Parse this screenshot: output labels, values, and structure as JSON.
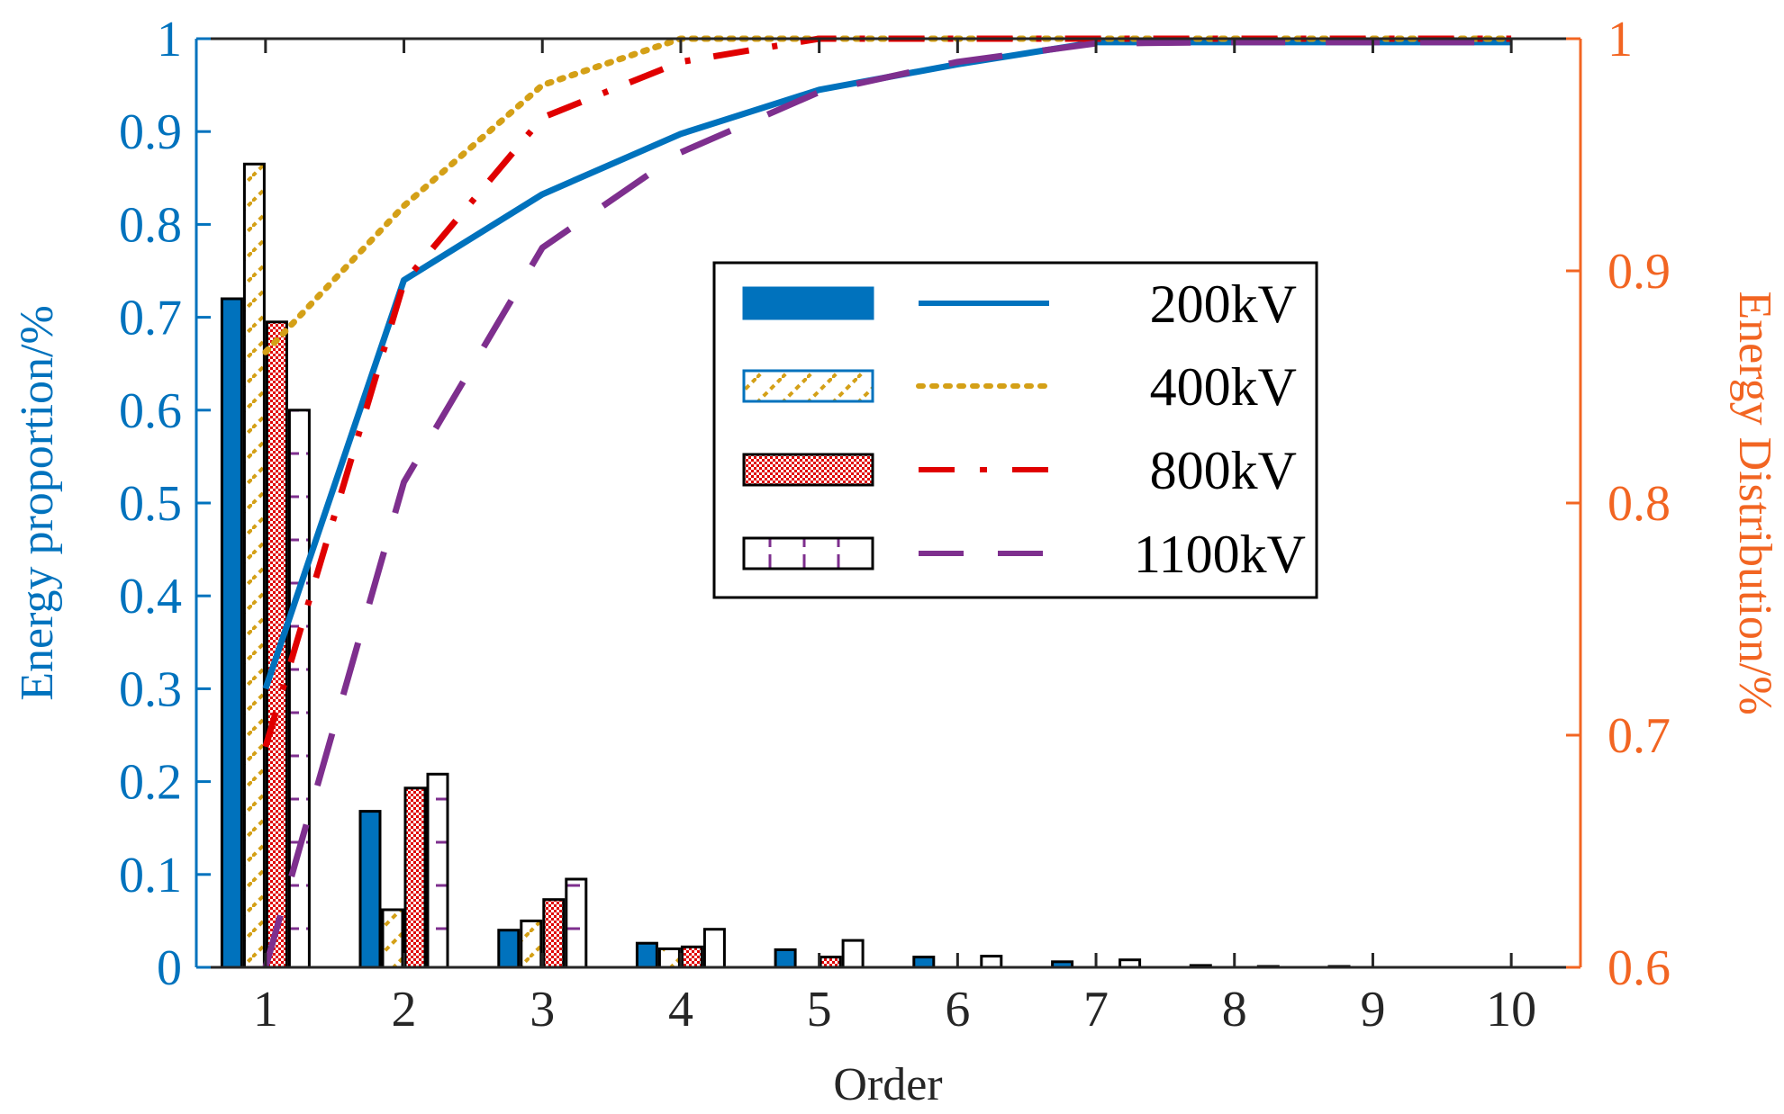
{
  "chart_data": {
    "type": "bar",
    "title": "",
    "xlabel": "Order",
    "ylabel_left": "Energy proportion/%",
    "ylabel_right": "Energy Distribution/%",
    "categories": [
      "1",
      "2",
      "3",
      "4",
      "5",
      "6",
      "7",
      "8",
      "9",
      "10"
    ],
    "x": [
      1,
      2,
      3,
      4,
      5,
      6,
      7,
      8,
      9,
      10
    ],
    "xlim": [
      0.5,
      10.5
    ],
    "ylim_left": [
      0,
      1
    ],
    "ylim_right": [
      0.6,
      1
    ],
    "yticks_left": [
      "0",
      "0.1",
      "0.2",
      "0.3",
      "0.4",
      "0.5",
      "0.6",
      "0.7",
      "0.8",
      "0.9",
      "1"
    ],
    "yticks_right": [
      "0.6",
      "0.7",
      "0.8",
      "0.9",
      "1"
    ],
    "bar_series": [
      {
        "name": "200kV",
        "values": [
          0.72,
          0.168,
          0.04,
          0.026,
          0.019,
          0.011,
          0.006,
          0.002,
          0.001,
          0.0
        ]
      },
      {
        "name": "400kV",
        "values": [
          0.865,
          0.062,
          0.05,
          0.02,
          0.0,
          0.0,
          0.0,
          0.0,
          0.0,
          0.0
        ]
      },
      {
        "name": "800kV",
        "values": [
          0.695,
          0.193,
          0.073,
          0.022,
          0.011,
          0.0,
          0.0,
          0.0,
          0.0,
          0.0
        ]
      },
      {
        "name": "1100kV",
        "values": [
          0.6,
          0.208,
          0.095,
          0.041,
          0.029,
          0.012,
          0.008,
          0.001,
          0.0,
          0.0
        ]
      }
    ],
    "line_series": [
      {
        "name": "200kV",
        "axis": "right",
        "values": [
          0.72,
          0.896,
          0.933,
          0.959,
          0.978,
          0.989,
          0.9985,
          0.9985,
          0.9985,
          0.9985
        ]
      },
      {
        "name": "400kV",
        "axis": "right",
        "values": [
          0.865,
          0.928,
          0.98,
          1.0,
          1.0,
          1.0,
          1.0,
          1.0,
          1.0,
          1.0
        ]
      },
      {
        "name": "800kV",
        "axis": "right",
        "values": [
          0.695,
          0.895,
          0.966,
          0.99,
          1.0,
          1.0,
          1.0,
          1.0,
          1.0,
          1.0
        ]
      },
      {
        "name": "1100kV",
        "axis": "right",
        "values": [
          0.6,
          0.809,
          0.91,
          0.951,
          0.977,
          0.99,
          0.998,
          0.9985,
          0.9985,
          0.9985
        ]
      }
    ],
    "legend": {
      "position": "center-right",
      "entries": [
        "200kV",
        "400kV",
        "800kV",
        "1100kV"
      ]
    },
    "colors": {
      "left_axis": "#0072BD",
      "right_axis": "#F26522",
      "s200": "#0072BD",
      "s400": "#D4A017",
      "s800": "#E00000",
      "s1100": "#7E2F8E"
    }
  }
}
